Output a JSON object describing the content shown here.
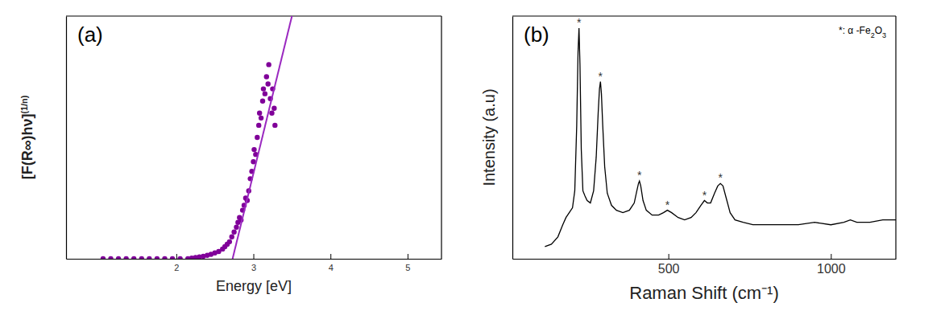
{
  "chart_data": [
    {
      "type": "scatter",
      "panel_label": "(a)",
      "x_label": "Energy [eV]",
      "y_label": "[F(R∞)hν]",
      "y_label_superscript": "(1/n)",
      "xlim": [
        0.57,
        5.44
      ],
      "xticks": [
        2,
        3,
        4,
        5
      ],
      "ylim": [
        0,
        1
      ],
      "tick_labels": "x",
      "grid": false,
      "series": [
        {
          "type": "scatter",
          "color": "#800099",
          "marker": "circle",
          "x": [
            1.05,
            1.15,
            1.25,
            1.35,
            1.45,
            1.55,
            1.65,
            1.75,
            1.85,
            1.95,
            2.05,
            2.15,
            2.2,
            2.25,
            2.3,
            2.35,
            2.4,
            2.45,
            2.5,
            2.55,
            2.6,
            2.63,
            2.66,
            2.69,
            2.72,
            2.75,
            2.78,
            2.8,
            2.82,
            2.84,
            2.86,
            2.88,
            2.9,
            2.92,
            2.94,
            2.96,
            2.98,
            3.0,
            3.01,
            3.03,
            3.05,
            3.07,
            3.08,
            3.1,
            3.12,
            3.13,
            3.15,
            3.17,
            3.19,
            3.2,
            3.22,
            3.24,
            3.25,
            3.27,
            3.28
          ],
          "values": [
            0,
            0,
            0,
            0,
            0,
            0,
            0,
            0,
            0,
            0,
            0,
            0,
            0.003,
            0.005,
            0.008,
            0.01,
            0.014,
            0.018,
            0.024,
            0.03,
            0.04,
            0.05,
            0.06,
            0.07,
            0.09,
            0.11,
            0.13,
            0.15,
            0.17,
            0.16,
            0.2,
            0.22,
            0.25,
            0.24,
            0.28,
            0.33,
            0.36,
            0.4,
            0.45,
            0.43,
            0.5,
            0.55,
            0.6,
            0.58,
            0.65,
            0.7,
            0.68,
            0.75,
            0.72,
            0.8,
            0.66,
            0.6,
            0.7,
            0.62,
            0.55
          ]
        },
        {
          "type": "line",
          "color": "#9a28c0",
          "line_style": "solid",
          "x": [
            2.73,
            3.5
          ],
          "values": [
            0,
            1.0
          ]
        }
      ]
    },
    {
      "type": "line",
      "panel_label": "(b)",
      "note": "*: α -Fe2O3",
      "x_label": "Raman Shift (cm⁻¹)",
      "y_label": "Intensity (a.u)",
      "xlim": [
        20,
        1200
      ],
      "xticks": [
        500,
        1000
      ],
      "ylim": [
        0,
        1
      ],
      "tick_labels": "x",
      "grid": false,
      "series": [
        {
          "type": "line",
          "color": "#000000",
          "line_style": "solid",
          "x": [
            120,
            140,
            160,
            175,
            185,
            195,
            205,
            212,
            218,
            222,
            225,
            228,
            232,
            237,
            243,
            250,
            260,
            270,
            278,
            284,
            288,
            291,
            294,
            298,
            304,
            312,
            325,
            340,
            360,
            380,
            395,
            403,
            408,
            411,
            415,
            422,
            432,
            450,
            470,
            485,
            497,
            510,
            530,
            550,
            570,
            585,
            600,
            611,
            620,
            630,
            642,
            652,
            660,
            668,
            678,
            690,
            705,
            730,
            760,
            800,
            850,
            900,
            950,
            1000,
            1040,
            1060,
            1080,
            1120,
            1160,
            1200
          ],
          "values": [
            0.05,
            0.06,
            0.09,
            0.14,
            0.17,
            0.19,
            0.21,
            0.28,
            0.55,
            0.85,
            0.95,
            0.8,
            0.45,
            0.28,
            0.26,
            0.24,
            0.23,
            0.28,
            0.42,
            0.6,
            0.7,
            0.73,
            0.68,
            0.55,
            0.38,
            0.27,
            0.22,
            0.2,
            0.19,
            0.2,
            0.23,
            0.28,
            0.31,
            0.32,
            0.3,
            0.24,
            0.2,
            0.18,
            0.18,
            0.19,
            0.2,
            0.19,
            0.17,
            0.16,
            0.17,
            0.19,
            0.22,
            0.24,
            0.23,
            0.23,
            0.27,
            0.3,
            0.31,
            0.3,
            0.25,
            0.19,
            0.16,
            0.15,
            0.14,
            0.14,
            0.14,
            0.14,
            0.15,
            0.14,
            0.15,
            0.16,
            0.15,
            0.15,
            0.16,
            0.16
          ]
        }
      ],
      "annotations": [
        {
          "text": "*",
          "x": 225,
          "y": 0.95
        },
        {
          "text": "*",
          "x": 291,
          "y": 0.73
        },
        {
          "text": "*",
          "x": 411,
          "y": 0.32
        },
        {
          "text": "*",
          "x": 497,
          "y": 0.2
        },
        {
          "text": "*",
          "x": 611,
          "y": 0.24
        },
        {
          "text": "*",
          "x": 660,
          "y": 0.31
        }
      ]
    }
  ]
}
